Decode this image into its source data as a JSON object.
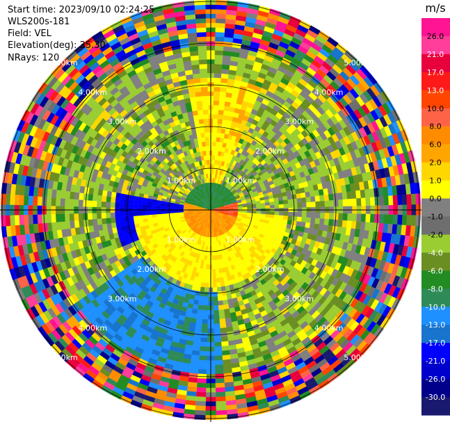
{
  "header": {
    "start_time": "Start time: 2023/09/10 02:24:25",
    "instrument": "WLS200s-181",
    "field": "Field: VEL",
    "elevation": "Elevation(deg): 35.30",
    "nrays": "NRays: 120"
  },
  "chart_data": {
    "type": "heatmap",
    "subtype": "polar-ppi",
    "rays": 120,
    "range_unit": "km",
    "ring_labels": [
      "1.00km",
      "2.00km",
      "3.00km",
      "4.00km",
      "5.00km"
    ],
    "colorbar": {
      "unit": "m/s",
      "ticks": [
        "26.0",
        "21.0",
        "17.0",
        "13.0",
        "10.0",
        "8.0",
        "6.0",
        "2.0",
        "1.0",
        "0.0",
        "-1.0",
        "-2.0",
        "-4.0",
        "-6.0",
        "-8.0",
        "-10.0",
        "-13.0",
        "-17.0",
        "-21.0",
        "-26.0",
        "-30.0"
      ],
      "colors": [
        "#ff1493",
        "#ff3d9a",
        "#e8003c",
        "#ff1a1a",
        "#ff4500",
        "#ff6347",
        "#ff8c00",
        "#ffa500",
        "#ffd700",
        "#ffff00",
        "#808080",
        "#6e6e6e",
        "#9acd32",
        "#6b8e23",
        "#228b22",
        "#2e8b57",
        "#1e90ff",
        "#1874cd",
        "#0000ff",
        "#0000cd",
        "#00008b",
        "#191970"
      ]
    }
  }
}
